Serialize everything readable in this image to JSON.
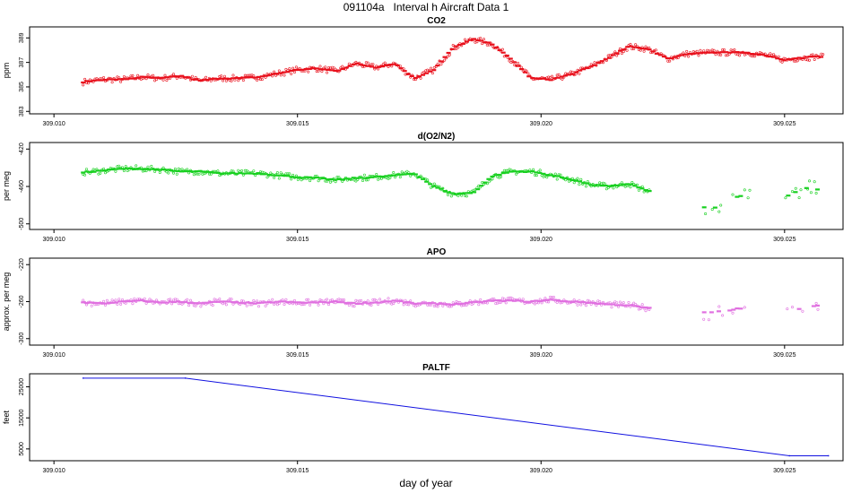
{
  "page": {
    "title": "091104a   Interval h Aircraft Data 1",
    "xlabel": "day of year"
  },
  "chart_data": [
    {
      "type": "scatter",
      "title": "CO2",
      "ylabel": "ppm",
      "xlim": [
        309.0095,
        309.0262
      ],
      "ylim": [
        382.8,
        389.9
      ],
      "xticks": [
        309.01,
        309.015,
        309.02,
        309.025
      ],
      "xtick_labels": [
        "309.010",
        "309.015",
        "309.020",
        "309.025"
      ],
      "yticks": [
        383,
        385,
        387,
        389
      ],
      "ytick_labels": [
        "383",
        "385",
        "387",
        "389"
      ],
      "grid": false,
      "series": [
        {
          "color": "#e8101c",
          "marker": "open-circle-and-dash",
          "x": [
            309.0106,
            309.011,
            309.0114,
            309.0118,
            309.0122,
            309.0126,
            309.013,
            309.0134,
            309.0138,
            309.0142,
            309.0146,
            309.015,
            309.0154,
            309.0158,
            309.0162,
            309.0166,
            309.017,
            309.0174,
            309.0178,
            309.0182,
            309.0186,
            309.019,
            309.0194,
            309.0198,
            309.0202,
            309.0206,
            309.021,
            309.0214,
            309.0218,
            309.0222,
            309.0226,
            309.023,
            309.0234,
            309.0238,
            309.0242,
            309.0246,
            309.025,
            309.0254,
            309.0258
          ],
          "y": [
            385.4,
            385.6,
            385.6,
            385.8,
            385.7,
            385.9,
            385.5,
            385.7,
            385.7,
            385.8,
            386.1,
            386.4,
            386.5,
            386.3,
            386.9,
            386.6,
            386.9,
            385.7,
            386.4,
            388.2,
            388.9,
            388.5,
            387.2,
            385.7,
            385.6,
            386.0,
            386.6,
            387.4,
            388.3,
            388.1,
            387.3,
            387.7,
            387.8,
            387.8,
            387.8,
            387.6,
            387.2,
            387.4,
            387.5
          ]
        }
      ]
    },
    {
      "type": "scatter",
      "title": "d(O2/N2)",
      "ylabel": "per meg",
      "xlim": [
        309.0095,
        309.0262
      ],
      "ylim": [
        -506,
        -413
      ],
      "xticks": [
        309.01,
        309.015,
        309.02,
        309.025
      ],
      "xtick_labels": [
        "309.010",
        "309.015",
        "309.020",
        "309.025"
      ],
      "yticks": [
        -420,
        -460,
        -500
      ],
      "ytick_labels": [
        "-420",
        "-460",
        "-500"
      ],
      "grid": false,
      "series": [
        {
          "color": "#18d020",
          "marker": "open-circle-and-dash",
          "x": [
            309.0106,
            309.011,
            309.0114,
            309.0118,
            309.0122,
            309.0126,
            309.013,
            309.0134,
            309.0138,
            309.0142,
            309.0146,
            309.015,
            309.0154,
            309.0158,
            309.0162,
            309.0166,
            309.017,
            309.0174,
            309.0178,
            309.0182,
            309.0186,
            309.019,
            309.0194,
            309.0198,
            309.0202,
            309.0206,
            309.021,
            309.0214,
            309.0218,
            309.0222,
            309.0235,
            309.0239,
            309.0242,
            309.0251,
            309.0254,
            309.0257
          ],
          "y": [
            -445,
            -443,
            -441,
            -441,
            -442,
            -444,
            -444,
            -446,
            -446,
            -446,
            -448,
            -450,
            -451,
            -453,
            -451,
            -450,
            -448,
            -446,
            -460,
            -468,
            -467,
            -449,
            -444,
            -444,
            -448,
            -452,
            -458,
            -460,
            -457,
            -465,
            -485,
            -472,
            -470,
            -470,
            -461,
            -463
          ]
        }
      ]
    },
    {
      "type": "scatter",
      "title": "APO",
      "ylabel": "approx. per meg",
      "xlim": [
        309.0095,
        309.0262
      ],
      "ylim": [
        -307,
        -213
      ],
      "xticks": [
        309.01,
        309.015,
        309.02,
        309.025
      ],
      "xtick_labels": [
        "309.010",
        "309.015",
        "309.020",
        "309.025"
      ],
      "yticks": [
        -220,
        -260,
        -300
      ],
      "ytick_labels": [
        "-220",
        "-260",
        "-300"
      ],
      "grid": false,
      "series": [
        {
          "color": "#e070e0",
          "marker": "open-circle-and-dash",
          "x": [
            309.0106,
            309.011,
            309.0114,
            309.0118,
            309.0122,
            309.0126,
            309.013,
            309.0134,
            309.0138,
            309.0142,
            309.0146,
            309.015,
            309.0154,
            309.0158,
            309.0162,
            309.0166,
            309.017,
            309.0174,
            309.0178,
            309.0182,
            309.0186,
            309.019,
            309.0194,
            309.0198,
            309.0202,
            309.0206,
            309.021,
            309.0214,
            309.0218,
            309.0222,
            309.0235,
            309.0239,
            309.0242,
            309.0251,
            309.0254,
            309.0257
          ],
          "y": [
            -261,
            -262,
            -260,
            -259,
            -261,
            -260,
            -262,
            -260,
            -261,
            -262,
            -260,
            -261,
            -261,
            -260,
            -262,
            -261,
            -259,
            -262,
            -262,
            -263,
            -261,
            -259,
            -259,
            -260,
            -258,
            -260,
            -261,
            -263,
            -264,
            -267,
            -272,
            -269,
            -266,
            -270,
            -267,
            -264
          ]
        }
      ]
    },
    {
      "type": "line",
      "title": "PALTF",
      "ylabel": "feet",
      "xlim": [
        309.0095,
        309.0262
      ],
      "ylim": [
        1200,
        29200
      ],
      "xticks": [
        309.01,
        309.015,
        309.02,
        309.025
      ],
      "xtick_labels": [
        "309.010",
        "309.015",
        "309.020",
        "309.025"
      ],
      "yticks": [
        5000,
        15000,
        25000
      ],
      "ytick_labels": [
        "5000",
        "15000",
        "25000"
      ],
      "grid": false,
      "series": [
        {
          "color": "#1010e0",
          "x": [
            309.0106,
            309.0127,
            309.0251,
            309.0259
          ],
          "y": [
            27800,
            27800,
            2800,
            2800
          ]
        }
      ]
    }
  ]
}
